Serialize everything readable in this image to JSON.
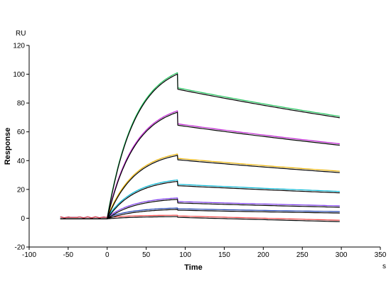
{
  "chart_data": {
    "type": "line",
    "title": "",
    "xlabel": "Time",
    "ylabel": "Response",
    "x_unit": "s",
    "y_unit": "RU",
    "xlim": [
      -100,
      350
    ],
    "ylim": [
      -20,
      120
    ],
    "xticks": [
      -100,
      -50,
      0,
      50,
      100,
      150,
      200,
      250,
      300,
      350
    ],
    "yticks": [
      -20,
      0,
      20,
      40,
      60,
      80,
      100,
      120
    ],
    "grid": false,
    "association_end": 90,
    "baseline_start": -60,
    "end_time": 300,
    "series": [
      {
        "plateau": 100.5,
        "dissociation_start": 90,
        "end_value": 70,
        "color": "#22c55e"
      },
      {
        "plateau": 74,
        "dissociation_start": 65,
        "end_value": 51,
        "color": "#c026d3"
      },
      {
        "plateau": 44,
        "dissociation_start": 41,
        "end_value": 32,
        "color": "#eab308"
      },
      {
        "plateau": 26,
        "dissociation_start": 23,
        "end_value": 18,
        "color": "#06b6d4"
      },
      {
        "plateau": 13.5,
        "dissociation_start": 11,
        "end_value": 8,
        "color": "#7c3aed"
      },
      {
        "plateau": 6.5,
        "dissociation_start": 6,
        "end_value": 4,
        "color": "#1e40af"
      },
      {
        "plateau": 1.5,
        "dissociation_start": 1,
        "end_value": -2,
        "color": "#ef4444"
      }
    ]
  }
}
